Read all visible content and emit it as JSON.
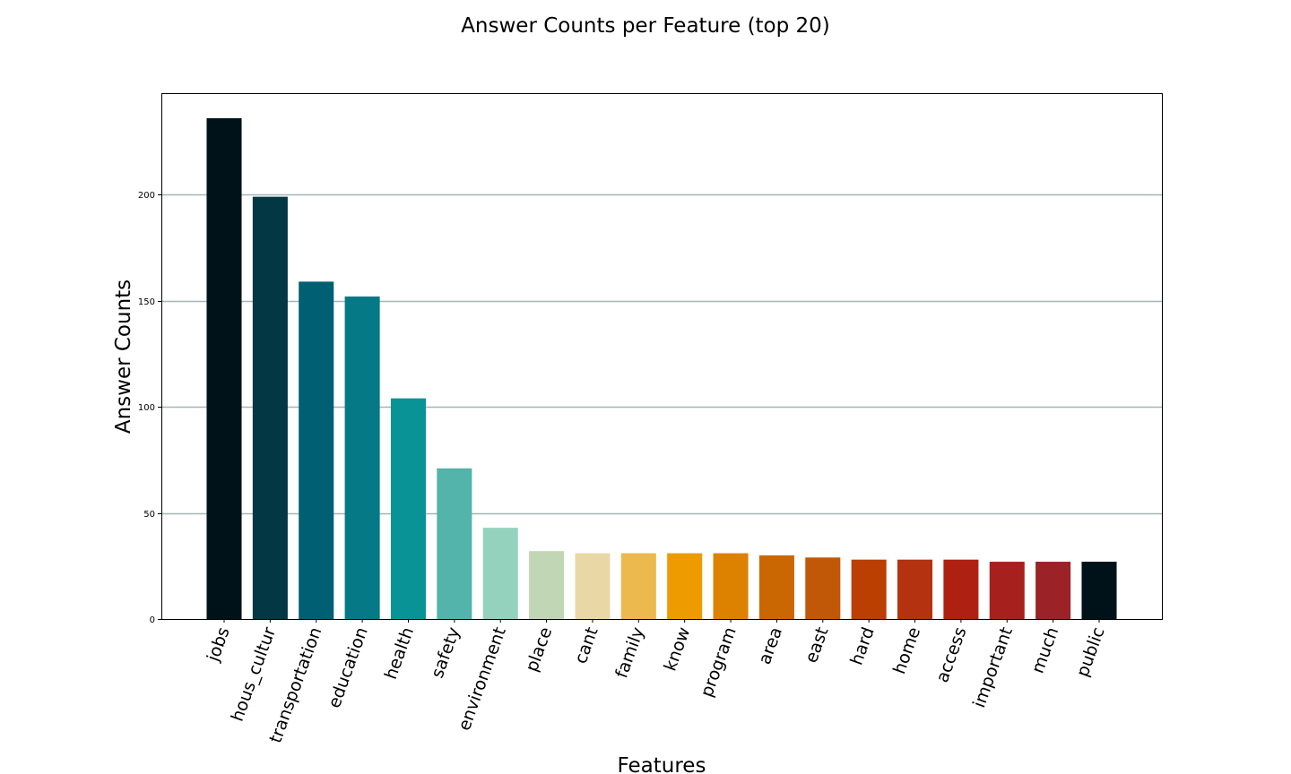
{
  "chart_data": {
    "type": "bar",
    "title": "Answer Counts per Feature (top 20)",
    "xlabel": "Features",
    "ylabel": "Answer Counts",
    "categories": [
      "jobs",
      "hous_cultur",
      "transportation",
      "education",
      "health",
      "safety",
      "environment",
      "place",
      "cant",
      "family",
      "know",
      "program",
      "area",
      "east",
      "hard",
      "home",
      "access",
      "important",
      "much",
      "public"
    ],
    "values": [
      236,
      199,
      159,
      152,
      104,
      71,
      43,
      32,
      31,
      31,
      31,
      31,
      30,
      29,
      28,
      28,
      28,
      27,
      27,
      27
    ],
    "ylim": [
      0,
      236
    ],
    "yticks": [
      0,
      50,
      100,
      150,
      200
    ],
    "grid": "horizontal",
    "colors": [
      "#001219",
      "#023743",
      "#005f73",
      "#067986",
      "#0a9396",
      "#52b4aa",
      "#94d2bd",
      "#c1d6b4",
      "#e9d8a6",
      "#ebb94e",
      "#ee9b00",
      "#dd8100",
      "#ca6702",
      "#c05808",
      "#bb3e03",
      "#b43210",
      "#ae2012",
      "#a6211e",
      "#9b2226",
      "#001219"
    ]
  }
}
